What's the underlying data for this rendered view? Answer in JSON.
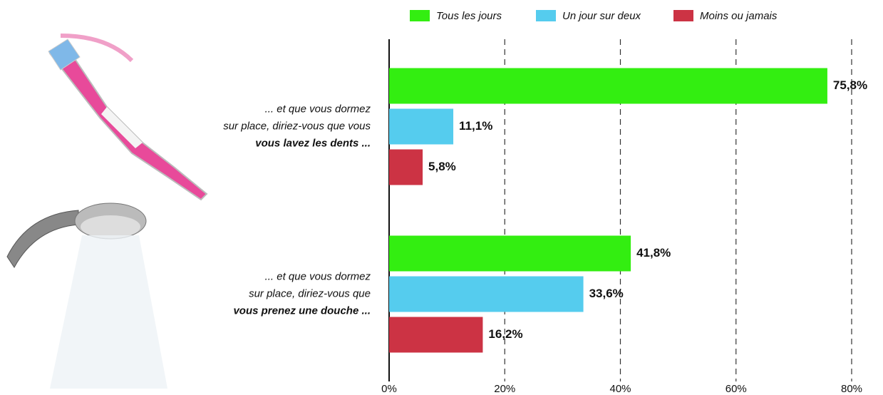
{
  "chart_data": {
    "type": "hbar",
    "categories": [
      {
        "lines": [
          "... et que vous dormez",
          "sur place, diriez-vous que vous"
        ],
        "emphasis": "vous lavez les dents ..."
      },
      {
        "lines": [
          "... et que vous dormez",
          "sur place, diriez-vous que"
        ],
        "emphasis": "vous prenez une douche ..."
      }
    ],
    "series": [
      {
        "name": "Tous les jours",
        "color": "#33ee11",
        "values": [
          75.8,
          41.8
        ],
        "value_labels": [
          "75,8%",
          "41,8%"
        ]
      },
      {
        "name": "Un jour sur deux",
        "color": "#55ccee",
        "values": [
          11.1,
          33.6
        ],
        "value_labels": [
          "11,1%",
          "33,6%"
        ]
      },
      {
        "name": "Moins ou jamais",
        "color": "#cc3344",
        "values": [
          5.8,
          16.2
        ],
        "value_labels": [
          "5,8%",
          "16,2%"
        ]
      }
    ],
    "xlim": [
      0,
      80
    ],
    "xticks": [
      {
        "value": 0,
        "label": "0%"
      },
      {
        "value": 20,
        "label": "20%"
      },
      {
        "value": 40,
        "label": "40%"
      },
      {
        "value": 60,
        "label": "60%"
      },
      {
        "value": 80,
        "label": "80%"
      }
    ],
    "grid": true,
    "legend": "top"
  }
}
